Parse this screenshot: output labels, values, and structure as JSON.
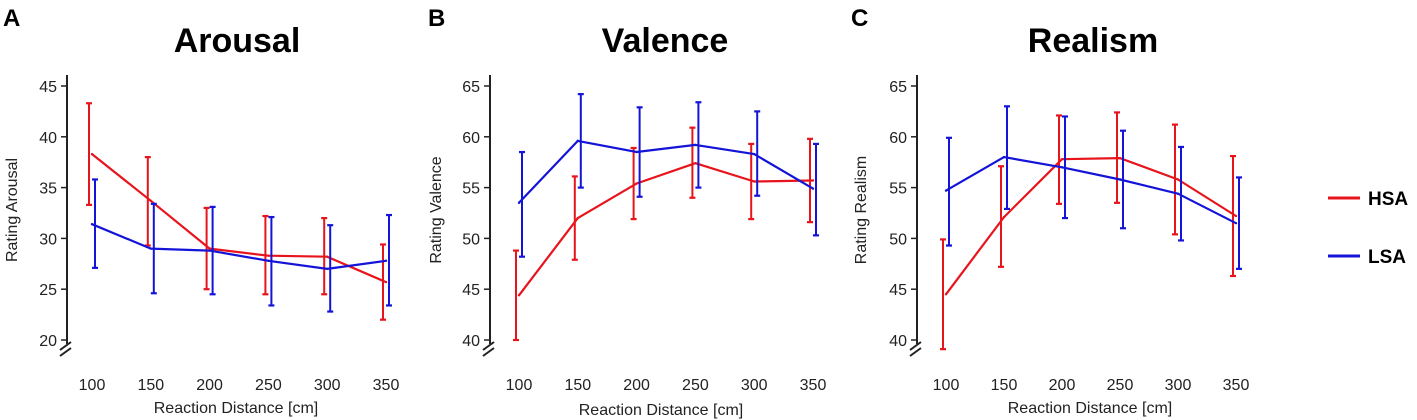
{
  "panels": [
    "A",
    "B",
    "C"
  ],
  "legend": [
    {
      "label": "HSA",
      "color": "#e8141c"
    },
    {
      "label": "LSA",
      "color": "#1414d8"
    }
  ],
  "chart_data": [
    {
      "type": "line",
      "panel_letter": "A",
      "title": "Arousal",
      "xlabel": "Reaction Distance [cm]",
      "ylabel": "Rating Arousal",
      "x": [
        100,
        150,
        200,
        250,
        300,
        350
      ],
      "x_ticks": [
        "100",
        "150",
        "200",
        "250",
        "300",
        "350"
      ],
      "y_ticks": [
        "20",
        "25",
        "30",
        "35",
        "40",
        "45"
      ],
      "ylim": [
        20,
        45
      ],
      "axis_break": true,
      "series": [
        {
          "name": "HSA",
          "color": "#e8141c",
          "values": [
            38.3,
            33.7,
            29.0,
            28.3,
            28.2,
            25.7
          ],
          "err_low": [
            33.3,
            29.3,
            25.0,
            24.5,
            24.5,
            22.0
          ],
          "err_high": [
            43.3,
            38.0,
            33.0,
            32.2,
            32.0,
            29.4
          ]
        },
        {
          "name": "LSA",
          "color": "#1414d8",
          "values": [
            31.4,
            29.0,
            28.8,
            27.8,
            27.0,
            27.8
          ],
          "err_low": [
            27.1,
            24.6,
            24.5,
            23.4,
            22.8,
            23.4
          ],
          "err_high": [
            35.8,
            33.4,
            33.1,
            32.1,
            31.3,
            32.3
          ]
        }
      ]
    },
    {
      "type": "line",
      "panel_letter": "B",
      "title": "Valence",
      "xlabel": "Reaction Distance [cm]",
      "ylabel": "Rating Valence",
      "x": [
        100,
        150,
        200,
        250,
        300,
        350
      ],
      "x_ticks": [
        "100",
        "150",
        "200",
        "250",
        "300",
        "350"
      ],
      "y_ticks": [
        "40",
        "45",
        "50",
        "55",
        "60",
        "65"
      ],
      "ylim": [
        40,
        65
      ],
      "axis_break": true,
      "series": [
        {
          "name": "HSA",
          "color": "#e8141c",
          "values": [
            44.4,
            52.0,
            55.4,
            57.4,
            55.6,
            55.7
          ],
          "err_low": [
            40.0,
            47.9,
            51.9,
            54.0,
            51.9,
            51.6
          ],
          "err_high": [
            48.8,
            56.1,
            58.9,
            60.9,
            59.3,
            59.8
          ]
        },
        {
          "name": "LSA",
          "color": "#1414d8",
          "values": [
            53.5,
            59.6,
            58.5,
            59.2,
            58.3,
            54.9
          ],
          "err_low": [
            48.2,
            55.0,
            54.1,
            55.0,
            54.2,
            50.3
          ],
          "err_high": [
            58.5,
            64.2,
            62.9,
            63.4,
            62.5,
            59.3
          ]
        }
      ]
    },
    {
      "type": "line",
      "panel_letter": "C",
      "title": "Realism",
      "xlabel": "Reaction Distance [cm]",
      "ylabel": "Rating Realism",
      "x": [
        100,
        150,
        200,
        250,
        300,
        350
      ],
      "x_ticks": [
        "100",
        "150",
        "200",
        "250",
        "300",
        "350"
      ],
      "y_ticks": [
        "40",
        "45",
        "50",
        "55",
        "60",
        "65"
      ],
      "ylim": [
        40,
        65
      ],
      "axis_break": true,
      "series": [
        {
          "name": "HSA",
          "color": "#e8141c",
          "values": [
            44.5,
            52.1,
            57.8,
            57.9,
            55.8,
            52.2
          ],
          "err_low": [
            39.1,
            47.2,
            53.4,
            53.5,
            50.4,
            46.3
          ],
          "err_high": [
            49.9,
            57.1,
            62.1,
            62.4,
            61.2,
            58.1
          ]
        },
        {
          "name": "LSA",
          "color": "#1414d8",
          "values": [
            54.7,
            58.0,
            57.0,
            55.8,
            54.4,
            51.5
          ],
          "err_low": [
            49.3,
            52.9,
            52.0,
            51.0,
            49.8,
            47.0
          ],
          "err_high": [
            59.9,
            63.0,
            62.0,
            60.6,
            59.0,
            56.0
          ]
        }
      ]
    }
  ]
}
